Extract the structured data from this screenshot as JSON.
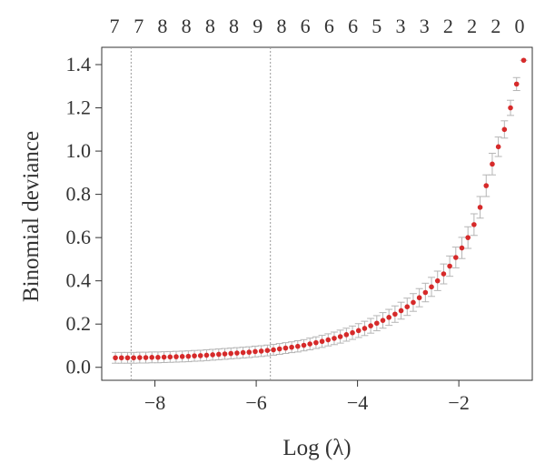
{
  "chart_data": {
    "type": "scatter",
    "title": "",
    "xlabel": "Log (λ)",
    "ylabel": "Binomial deviance",
    "xlim": [
      -9.05,
      -0.55
    ],
    "ylim": [
      -0.06,
      1.48
    ],
    "xticks": [
      -8,
      -6,
      -4,
      -2
    ],
    "xtick_labels": [
      "−8",
      "−6",
      "−4",
      "−2"
    ],
    "yticks": [
      0.0,
      0.2,
      0.4,
      0.6,
      0.8,
      1.0,
      1.2,
      1.4
    ],
    "ytick_labels": [
      "0.0",
      "0.2",
      "0.4",
      "0.6",
      "0.8",
      "1.0",
      "1.2",
      "1.4"
    ],
    "top_axis": {
      "positions": [
        -8.8,
        -8.32,
        -7.85,
        -7.38,
        -6.91,
        -6.44,
        -5.97,
        -5.5,
        -5.03,
        -4.56,
        -4.09,
        -3.62,
        -3.15,
        -2.68,
        -2.21,
        -1.74,
        -1.27,
        -0.8
      ],
      "labels": [
        "7",
        "7",
        "8",
        "8",
        "8",
        "8",
        "9",
        "8",
        "6",
        "6",
        "6",
        "5",
        "3",
        "3",
        "2",
        "2",
        "2",
        "0"
      ]
    },
    "reference_lines_x": [
      -8.47,
      -5.72
    ],
    "series": [
      {
        "x": [
          -8.78,
          -8.66,
          -8.54,
          -8.42,
          -8.3,
          -8.18,
          -8.06,
          -7.94,
          -7.82,
          -7.7,
          -7.58,
          -7.46,
          -7.34,
          -7.22,
          -7.1,
          -6.98,
          -6.86,
          -6.74,
          -6.62,
          -6.5,
          -6.38,
          -6.26,
          -6.14,
          -6.02,
          -5.9,
          -5.78,
          -5.66,
          -5.54,
          -5.42,
          -5.3,
          -5.18,
          -5.06,
          -4.94,
          -4.82,
          -4.7,
          -4.58,
          -4.46,
          -4.34,
          -4.22,
          -4.1,
          -3.98,
          -3.86,
          -3.74,
          -3.62,
          -3.5,
          -3.38,
          -3.26,
          -3.14,
          -3.02,
          -2.9,
          -2.78,
          -2.66,
          -2.54,
          -2.42,
          -2.3,
          -2.18,
          -2.06,
          -1.94,
          -1.82,
          -1.7,
          -1.58,
          -1.46,
          -1.34,
          -1.22,
          -1.1,
          -0.98,
          -0.86
        ],
        "y": [
          0.044,
          0.044,
          0.044,
          0.044,
          0.045,
          0.045,
          0.046,
          0.046,
          0.047,
          0.048,
          0.049,
          0.05,
          0.051,
          0.053,
          0.054,
          0.056,
          0.058,
          0.06,
          0.062,
          0.064,
          0.066,
          0.068,
          0.07,
          0.073,
          0.075,
          0.078,
          0.081,
          0.085,
          0.089,
          0.093,
          0.097,
          0.102,
          0.108,
          0.114,
          0.12,
          0.127,
          0.134,
          0.142,
          0.151,
          0.16,
          0.17,
          0.18,
          0.192,
          0.204,
          0.217,
          0.231,
          0.246,
          0.262,
          0.28,
          0.3,
          0.322,
          0.346,
          0.372,
          0.4,
          0.432,
          0.468,
          0.508,
          0.552,
          0.6,
          0.66,
          0.74,
          0.84,
          0.94,
          1.02,
          1.1,
          1.2,
          1.31
        ],
        "error": [
          0.025,
          0.025,
          0.025,
          0.025,
          0.025,
          0.025,
          0.025,
          0.025,
          0.025,
          0.025,
          0.025,
          0.025,
          0.025,
          0.025,
          0.025,
          0.025,
          0.025,
          0.025,
          0.025,
          0.025,
          0.025,
          0.025,
          0.025,
          0.025,
          0.025,
          0.025,
          0.025,
          0.025,
          0.025,
          0.025,
          0.026,
          0.026,
          0.027,
          0.027,
          0.028,
          0.028,
          0.029,
          0.03,
          0.03,
          0.031,
          0.032,
          0.033,
          0.034,
          0.035,
          0.036,
          0.037,
          0.038,
          0.039,
          0.04,
          0.041,
          0.042,
          0.043,
          0.044,
          0.045,
          0.046,
          0.047,
          0.048,
          0.049,
          0.05,
          0.05,
          0.05,
          0.05,
          0.05,
          0.045,
          0.04,
          0.035,
          0.03
        ]
      }
    ],
    "extra_point": {
      "x": -0.72,
      "y": 1.42
    },
    "colors": {
      "point": "#d62a2a",
      "errorbar": "#b5b5b5",
      "refline": "#9a9a9a",
      "axis": "#333333"
    }
  }
}
